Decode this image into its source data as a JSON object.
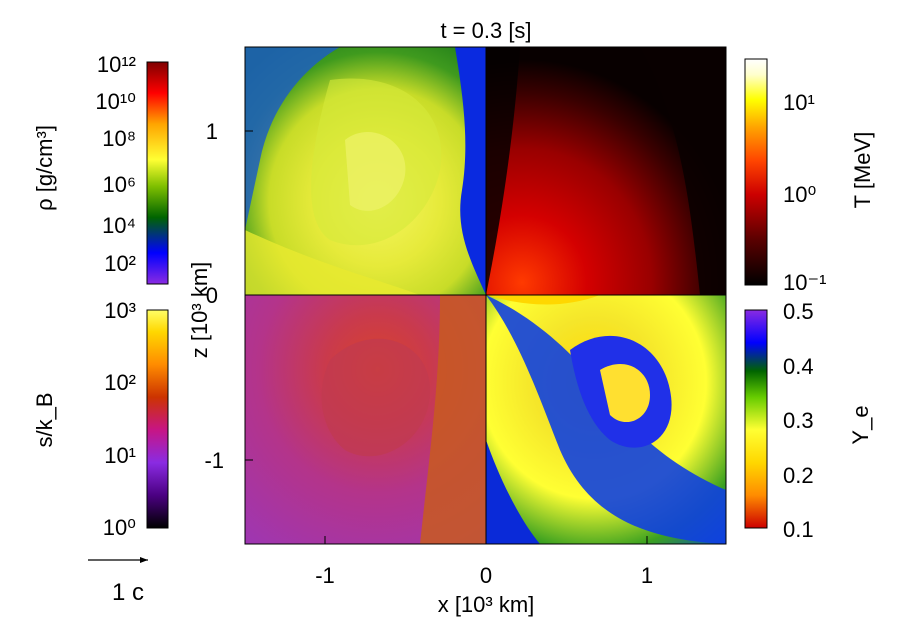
{
  "chart_data": {
    "type": "heatmap",
    "title": "t = 0.3 [s]",
    "xlabel": "x [10³ km]",
    "ylabel": "z [10³ km]",
    "xlim": [
      -1.47,
      1.47
    ],
    "ylim": [
      -1.53,
      1.53
    ],
    "x_ticks": [
      "-1",
      "0",
      "1"
    ],
    "y_ticks": [
      "1",
      "0",
      "-1"
    ],
    "quadrants": {
      "top_left": "ρ [g/cm³]",
      "top_right": "T [MeV]",
      "bottom_left": "s/k_B",
      "bottom_right": "Y_e"
    },
    "colorbars": [
      {
        "name": "density",
        "label": "ρ [g/cm³]",
        "scale": "log",
        "range": [
          10,
          1000000000000.0
        ],
        "ticks": [
          "10¹²",
          "10¹⁰",
          "10⁸",
          "10⁶",
          "10⁴",
          "10²"
        ],
        "colors": [
          "#8a2be2",
          "#0000ff",
          "#006400",
          "#7fbf00",
          "#ffff33",
          "#ffa500",
          "#ff0000",
          "#7f0000"
        ]
      },
      {
        "name": "entropy",
        "label": "s/k_B",
        "scale": "log",
        "range": [
          1,
          1000
        ],
        "ticks": [
          "10³",
          "10²",
          "10¹",
          "10⁰"
        ],
        "colors": [
          "#000000",
          "#4b0082",
          "#8a2be2",
          "#c71585",
          "#cc3300",
          "#ff8c00",
          "#ffd700",
          "#ffff66"
        ]
      },
      {
        "name": "temperature",
        "label": "T [MeV]",
        "scale": "log",
        "range": [
          0.1,
          30
        ],
        "ticks": [
          "10¹",
          "10⁰",
          "10⁻¹"
        ],
        "colors": [
          "#000000",
          "#5a0000",
          "#cc0000",
          "#ff4500",
          "#ffa500",
          "#ffff00",
          "#ffffcc",
          "#ffffff"
        ]
      },
      {
        "name": "electron_fraction",
        "label": "Y_e",
        "scale": "linear",
        "range": [
          0.1,
          0.5
        ],
        "ticks": [
          "0.5",
          "0.4",
          "0.3",
          "0.2",
          "0.1"
        ],
        "colors": [
          "#cc0000",
          "#ff8c00",
          "#ffd700",
          "#ffff33",
          "#66cc00",
          "#006400",
          "#0000ff",
          "#8a2be2"
        ]
      }
    ],
    "velocity_legend": "1 c"
  }
}
